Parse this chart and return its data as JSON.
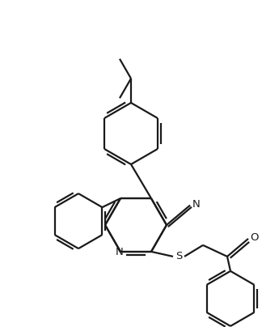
{
  "bg_color": "#ffffff",
  "line_color": "#1a1a1a",
  "line_width": 1.6,
  "fig_width": 3.24,
  "fig_height": 4.04,
  "dpi": 100,
  "xlim": [
    0,
    324
  ],
  "ylim": [
    0,
    404
  ]
}
